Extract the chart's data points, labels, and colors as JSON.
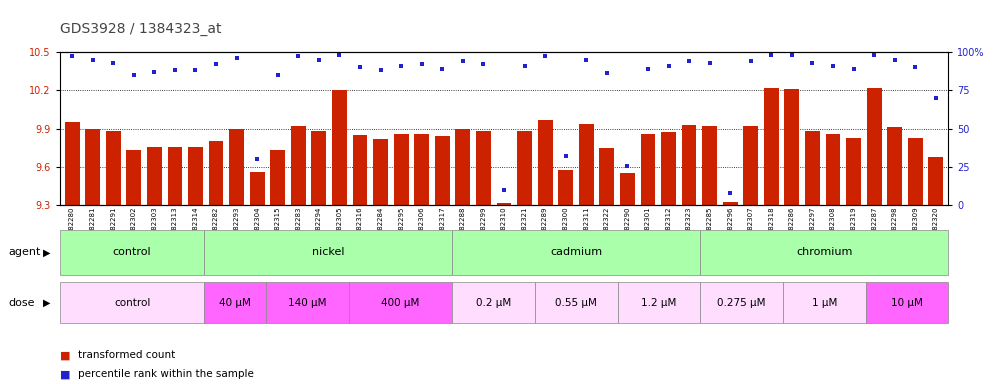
{
  "title": "GDS3928 / 1384323_at",
  "bar_color": "#CC2200",
  "dot_color": "#2222CC",
  "ylim_left": [
    9.3,
    10.5
  ],
  "ylim_right": [
    0,
    100
  ],
  "yticks_left": [
    9.3,
    9.6,
    9.9,
    10.2,
    10.5
  ],
  "yticks_right": [
    0,
    25,
    50,
    75,
    100
  ],
  "samples": [
    "GSM782280",
    "GSM782281",
    "GSM782291",
    "GSM782302",
    "GSM782303",
    "GSM782313",
    "GSM782314",
    "GSM782282",
    "GSM782293",
    "GSM782304",
    "GSM782315",
    "GSM782283",
    "GSM782294",
    "GSM782305",
    "GSM782316",
    "GSM782284",
    "GSM782295",
    "GSM782306",
    "GSM782317",
    "GSM782288",
    "GSM782299",
    "GSM782310",
    "GSM782321",
    "GSM782289",
    "GSM782300",
    "GSM782311",
    "GSM782322",
    "GSM782290",
    "GSM782301",
    "GSM782312",
    "GSM782323",
    "GSM782285",
    "GSM782296",
    "GSM782307",
    "GSM782318",
    "GSM782286",
    "GSM782297",
    "GSM782308",
    "GSM782319",
    "GSM782287",
    "GSM782298",
    "GSM782309",
    "GSM782320"
  ],
  "bar_values": [
    9.95,
    9.9,
    9.88,
    9.73,
    9.76,
    9.76,
    9.76,
    9.8,
    9.9,
    9.56,
    9.73,
    9.92,
    9.88,
    10.2,
    9.85,
    9.82,
    9.86,
    9.86,
    9.84,
    9.9,
    9.88,
    9.32,
    9.88,
    9.97,
    9.58,
    9.94,
    9.75,
    9.55,
    9.86,
    9.87,
    9.93,
    9.92,
    9.33,
    9.92,
    10.22,
    10.21,
    9.88,
    9.86,
    9.83,
    10.22,
    9.91,
    9.83,
    9.68
  ],
  "dot_values": [
    97,
    95,
    93,
    85,
    87,
    88,
    88,
    92,
    96,
    30,
    85,
    97,
    95,
    98,
    90,
    88,
    91,
    92,
    89,
    94,
    92,
    10,
    91,
    97,
    32,
    95,
    86,
    26,
    89,
    91,
    94,
    93,
    8,
    94,
    98,
    98,
    93,
    91,
    89,
    98,
    95,
    90,
    70
  ],
  "agent_groups": [
    {
      "label": "control",
      "start": 0,
      "end": 6,
      "color": "#AAFFAA"
    },
    {
      "label": "nickel",
      "start": 7,
      "end": 18,
      "color": "#AAFFAA"
    },
    {
      "label": "cadmium",
      "start": 19,
      "end": 30,
      "color": "#AAFFAA"
    },
    {
      "label": "chromium",
      "start": 31,
      "end": 42,
      "color": "#AAFFAA"
    }
  ],
  "dose_groups": [
    {
      "label": "control",
      "start": 0,
      "end": 6,
      "color": "#FFDDFF"
    },
    {
      "label": "40 μM",
      "start": 7,
      "end": 9,
      "color": "#FF66FF"
    },
    {
      "label": "140 μM",
      "start": 10,
      "end": 13,
      "color": "#FF66FF"
    },
    {
      "label": "400 μM",
      "start": 14,
      "end": 18,
      "color": "#FF66FF"
    },
    {
      "label": "0.2 μM",
      "start": 19,
      "end": 22,
      "color": "#FFDDFF"
    },
    {
      "label": "0.55 μM",
      "start": 23,
      "end": 26,
      "color": "#FFDDFF"
    },
    {
      "label": "1.2 μM",
      "start": 27,
      "end": 30,
      "color": "#FFDDFF"
    },
    {
      "label": "0.275 μM",
      "start": 31,
      "end": 34,
      "color": "#FFDDFF"
    },
    {
      "label": "1 μM",
      "start": 35,
      "end": 38,
      "color": "#FFDDFF"
    },
    {
      "label": "10 μM",
      "start": 39,
      "end": 42,
      "color": "#FF66FF"
    }
  ]
}
